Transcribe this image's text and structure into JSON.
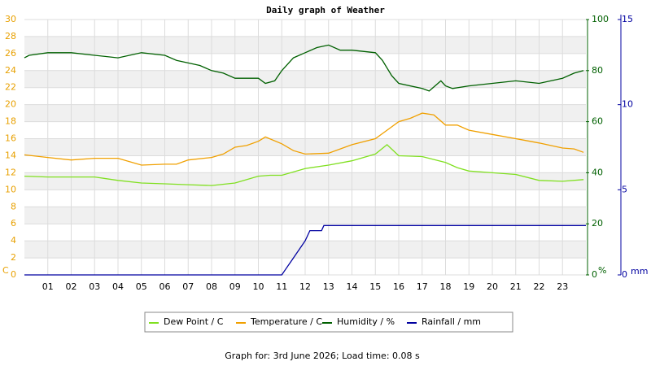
{
  "chart_data": {
    "type": "line",
    "title": "Daily graph of Weather",
    "footer": "Graph for: 3rd June 2026; Load time: 0.08 s",
    "y_label": "C",
    "y2_label": "%",
    "y3_label": "mm",
    "xlim": [
      0,
      24
    ],
    "xticks": [
      {
        "value": 1,
        "label": "01"
      },
      {
        "value": 2,
        "label": "02"
      },
      {
        "value": 3,
        "label": "03"
      },
      {
        "value": 4,
        "label": "04"
      },
      {
        "value": 5,
        "label": "05"
      },
      {
        "value": 6,
        "label": "06"
      },
      {
        "value": 7,
        "label": "07"
      },
      {
        "value": 8,
        "label": "08"
      },
      {
        "value": 9,
        "label": "09"
      },
      {
        "value": 10,
        "label": "10"
      },
      {
        "value": 11,
        "label": "11"
      },
      {
        "value": 12,
        "label": "12"
      },
      {
        "value": 13,
        "label": "13"
      },
      {
        "value": 14,
        "label": "14"
      },
      {
        "value": 15,
        "label": "15"
      },
      {
        "value": 16,
        "label": "16"
      },
      {
        "value": 17,
        "label": "17"
      },
      {
        "value": 18,
        "label": "18"
      },
      {
        "value": 19,
        "label": "19"
      },
      {
        "value": 20,
        "label": "20"
      },
      {
        "value": 21,
        "label": "21"
      },
      {
        "value": 22,
        "label": "22"
      },
      {
        "value": 23,
        "label": "23"
      }
    ],
    "ylim": [
      0,
      30
    ],
    "yticks": [
      0,
      2,
      4,
      6,
      8,
      10,
      12,
      14,
      16,
      18,
      20,
      22,
      24,
      26,
      28,
      30
    ],
    "y_color": "#e8a000",
    "y2lim": [
      0,
      100
    ],
    "y2ticks": [
      0,
      20,
      40,
      60,
      80,
      100
    ],
    "y2_color": "#006000",
    "y3lim": [
      0,
      15
    ],
    "y3ticks": [
      0,
      5,
      10,
      15
    ],
    "y3_color": "#0000a0",
    "grid": true,
    "series": [
      {
        "name": "Dew Point / C",
        "color": "#80e020",
        "x": [
          0,
          1,
          2,
          3,
          4,
          5,
          6,
          7,
          8,
          9,
          10,
          10.5,
          11,
          12,
          13,
          14,
          15,
          15.5,
          16,
          17,
          18,
          18.5,
          19,
          20,
          21,
          22,
          23,
          23.9
        ],
        "values": [
          11.6,
          11.5,
          11.5,
          11.5,
          11.1,
          10.8,
          10.7,
          10.6,
          10.5,
          10.8,
          11.6,
          11.7,
          11.7,
          12.5,
          12.9,
          13.4,
          14.2,
          15.3,
          14.0,
          13.9,
          13.2,
          12.6,
          12.2,
          12.0,
          11.8,
          11.1,
          11.0,
          11.2
        ]
      },
      {
        "name": "Temperature / C",
        "color": "#f0a000",
        "x": [
          0,
          1,
          2,
          3,
          4,
          5,
          6,
          6.5,
          7,
          8,
          8.5,
          9,
          9.5,
          10,
          10.3,
          11,
          11.5,
          12,
          13,
          14,
          15,
          15.5,
          16,
          16.5,
          17,
          17.5,
          18,
          18.5,
          19,
          20,
          21,
          22,
          23,
          23.5,
          23.9
        ],
        "values": [
          14.1,
          13.8,
          13.5,
          13.7,
          13.7,
          12.9,
          13.0,
          13.0,
          13.5,
          13.8,
          14.2,
          15.0,
          15.2,
          15.7,
          16.2,
          15.4,
          14.6,
          14.2,
          14.3,
          15.3,
          16.0,
          17.0,
          18.0,
          18.4,
          19.0,
          18.8,
          17.6,
          17.6,
          17.0,
          16.5,
          16.0,
          15.5,
          14.9,
          14.8,
          14.4
        ]
      },
      {
        "name": "Humidity / %",
        "color": "#006000",
        "axis": "y2",
        "x": [
          0,
          0.2,
          1,
          2,
          3,
          4,
          5,
          6,
          6.5,
          7,
          7.5,
          8,
          8.5,
          9,
          10,
          10.3,
          10.7,
          11,
          11.5,
          12,
          12.5,
          13,
          13.5,
          14,
          15,
          15.3,
          15.7,
          16,
          17,
          17.3,
          17.8,
          18,
          18.3,
          19,
          20,
          21,
          22,
          23,
          23.5,
          23.9
        ],
        "values": [
          85,
          86,
          87,
          87,
          86,
          85,
          87,
          86,
          84,
          83,
          82,
          80,
          79,
          77,
          77,
          75,
          76,
          80,
          85,
          87,
          89,
          90,
          88,
          88,
          87,
          84,
          78,
          75,
          73,
          72,
          76,
          74,
          73,
          74,
          75,
          76,
          75,
          77,
          79,
          80
        ]
      },
      {
        "name": "Rainfall / mm",
        "color": "#0000a0",
        "axis": "y3",
        "x": [
          0,
          11,
          11.1,
          11.5,
          12,
          12.2,
          12.7,
          12.8,
          24
        ],
        "values": [
          0,
          0,
          0.2,
          1.0,
          2.0,
          2.6,
          2.6,
          2.9,
          2.9
        ]
      }
    ]
  }
}
